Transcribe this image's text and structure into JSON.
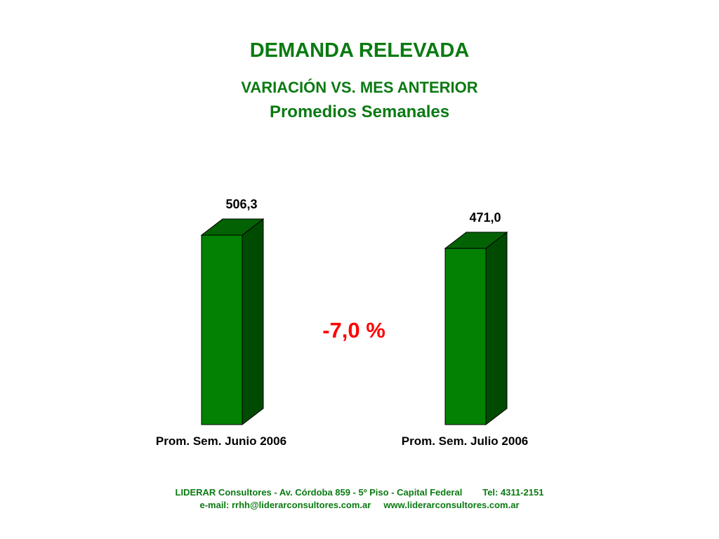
{
  "header": {
    "title": "DEMANDA RELEVADA",
    "subtitle": "VARIACIÓN VS. MES ANTERIOR",
    "subtitle2": "Promedios Semanales"
  },
  "chart_data": {
    "type": "bar",
    "style": "3d-column",
    "categories": [
      "Prom. Sem. Junio 2006",
      "Prom. Sem. Julio 2006"
    ],
    "values": [
      506.3,
      471.0
    ],
    "value_labels": [
      "506,3",
      "471,0"
    ],
    "annotation": "-7,0 %",
    "colors": {
      "bar_front": "#028102",
      "bar_top": "#036203",
      "bar_side": "#014a01",
      "annotation": "#ff0000",
      "text": "#000000"
    },
    "grid": false,
    "legend": "none"
  },
  "footer": {
    "line1": "LIDERAR Consultores - Av. Córdoba 859 - 5º Piso - Capital Federal        Tel: 4311-2151",
    "line2": "e-mail: rrhh@liderarconsultores.com.ar     www.liderarconsultores.com.ar"
  }
}
